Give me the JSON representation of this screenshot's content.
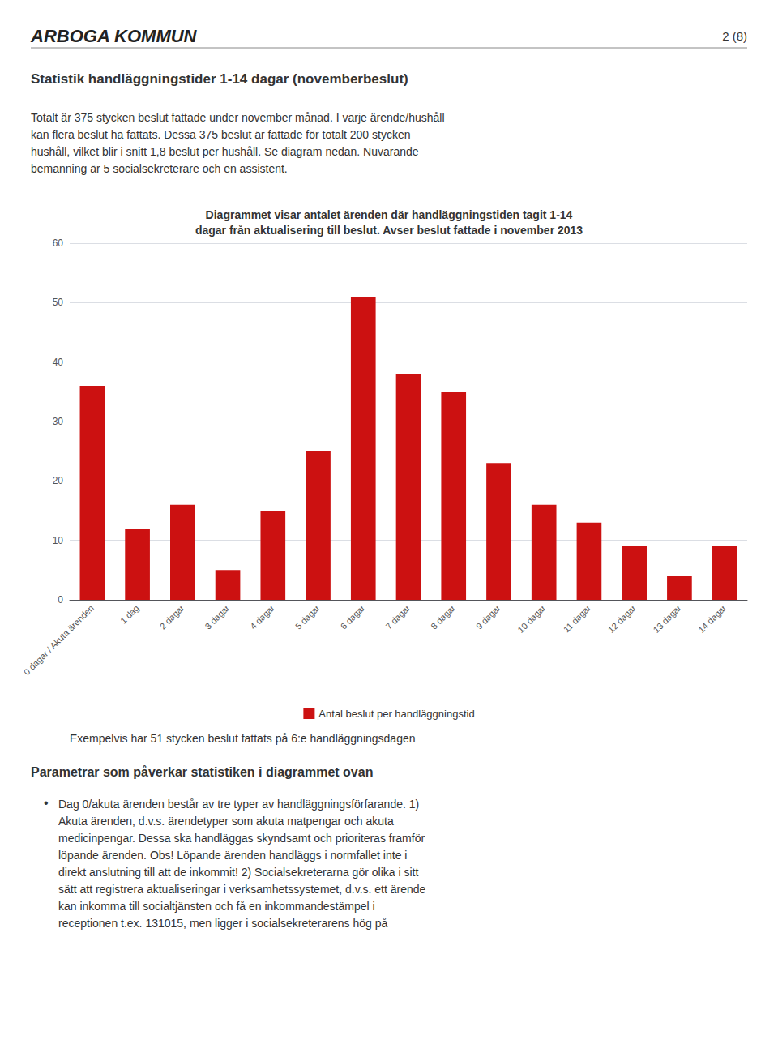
{
  "chart_data": {
    "type": "bar",
    "title": "Diagrammet visar antalet ärenden där handläggningstiden tagit 1-14\ndagar från aktualisering till beslut. Avser beslut fattade i november 2013",
    "categories": [
      "0 dagar / Akuta ärenden",
      "1 dag",
      "2 dagar",
      "3 dagar",
      "4 dagar",
      "5 dagar",
      "6 dagar",
      "7 dagar",
      "8 dagar",
      "9 dagar",
      "10 dagar",
      "11 dagar",
      "12 dagar",
      "13 dagar",
      "14 dagar"
    ],
    "series": [
      {
        "name": "Antal beslut per handläggningstid",
        "color": "#cc1111",
        "values": [
          36,
          12,
          16,
          5,
          15,
          25,
          51,
          38,
          35,
          23,
          16,
          13,
          9,
          4,
          9
        ]
      }
    ],
    "ylim": [
      0,
      60
    ],
    "yticks": [
      0,
      10,
      20,
      30,
      40,
      50,
      60
    ],
    "grid": true,
    "legend": "bottom",
    "annotations": [
      "ARBOGA KOMMUN",
      "2 (8)",
      "Statistik handläggningstider 1-14 dagar (novemberbeslut)",
      "Totalt är 375 stycken beslut fattade under november månad. I varje ärende/hushåll\nkan flera beslut ha fattats. Dessa 375 beslut är fattade för totalt 200 stycken\nhushåll, vilket blir i snitt 1,8 beslut per hushåll. Se diagram nedan. Nuvarande\nbemanning är 5 socialsekreterare och en assistent.",
      "Exempelvis har 51 stycken beslut fattats på 6:e handläggningsdagen",
      "Parametrar som påverkar statistiken i diagrammet ovan",
      "•",
      "Dag 0/akuta ärenden består av tre typer av handläggningsförfarande. 1)\nAkuta ärenden, d.v.s. ärendetyper som akuta matpengar och akuta\nmedicinpengar. Dessa ska handläggas skyndsamt och prioriteras framför\nlöpande ärenden. Obs! Löpande ärenden handläggs i normfallet inte i\ndirekt anslutning till att de inkommit! 2) Socialsekreterarna gör olika i sitt\nsätt att registrera aktualiseringar i verksamhetssystemet, d.v.s. ett ärende\nkan inkomma till socialtjänsten och få en inkommandestämpel i\nreceptionen t.ex. 131015, men ligger i socialsekreterarens hög på"
    ]
  }
}
